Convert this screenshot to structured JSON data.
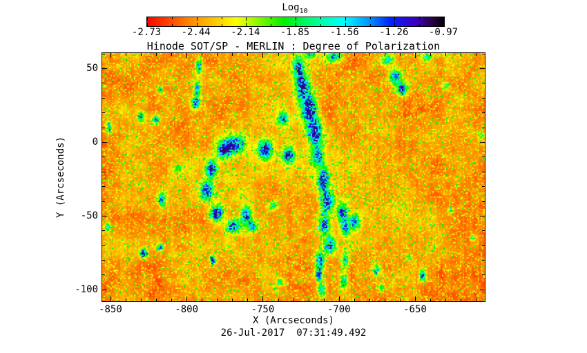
{
  "colorbar": {
    "title_main": "Log",
    "title_sub": "10",
    "tick_labels": [
      "-2.73",
      "-2.44",
      "-2.14",
      "-1.85",
      "-1.56",
      "-1.26",
      "-0.97"
    ]
  },
  "plot": {
    "title": "Hinode SOT/SP - MERLIN : Degree of Polarization",
    "ylabel": "Y (Arcseconds)",
    "xlabel": "X (Arcseconds)",
    "y_tick_labels": [
      "50",
      "0",
      "-50",
      "-100"
    ],
    "x_tick_labels": [
      "-850",
      "-800",
      "-750",
      "-700",
      "-650"
    ],
    "caption": "26-Jul-2017  07:31:49.492"
  },
  "chart_data": {
    "type": "heatmap",
    "title": "Hinode SOT/SP - MERLIN : Degree of Polarization",
    "xlabel": "X (Arcseconds)",
    "ylabel": "Y (Arcseconds)",
    "x_range": [
      -855.4,
      -604.2
    ],
    "y_range": [
      -108.0,
      60.3
    ],
    "x_ticks": [
      -850,
      -800,
      -750,
      -700,
      -650
    ],
    "y_ticks": [
      50,
      0,
      -50,
      -100
    ],
    "minor_tick_step": 10,
    "observation_time": "26-Jul-2017 07:31:49.492",
    "colorbar": {
      "label": "Log10",
      "tick_values": [
        -2.73,
        -2.44,
        -2.14,
        -1.85,
        -1.56,
        -1.26,
        -0.97
      ],
      "value_min": -2.73,
      "value_max": -0.97,
      "stops": [
        [
          0.0,
          "#ff0000"
        ],
        [
          0.14,
          "#ff8300"
        ],
        [
          0.3,
          "#fdff00"
        ],
        [
          0.46,
          "#00f000"
        ],
        [
          0.58,
          "#00ff9d"
        ],
        [
          0.66,
          "#00ffff"
        ],
        [
          0.74,
          "#009dff"
        ],
        [
          0.82,
          "#0022ff"
        ],
        [
          0.9,
          "#3a00c8"
        ],
        [
          0.96,
          "#2a0045"
        ],
        [
          1.0,
          "#000000"
        ]
      ]
    },
    "description": "Noisy red/orange background (log10 degree of polarization near -2.6) speckled with yellow, with a network of enhanced-polarization patches (green/cyan/blue knots, log10 DoP about -1.8 to -1.1) concentrated in a ring and vertical chains near the map center; grid off; colorbar horizontal above plot."
  }
}
